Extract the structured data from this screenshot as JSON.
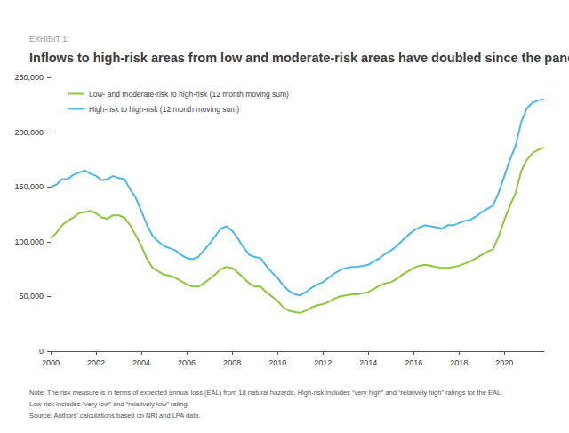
{
  "chart_data": {
    "type": "line",
    "subtitle": "EXHIBIT 1:",
    "title": "Inflows to high-risk areas from low and moderate-risk areas have doubled since the pandemic",
    "annotations": [
      "Note: The risk measure is in terms of expected annual loss (EAL) from 18 natural hazards. High-risk includes “very high” and “relatively high” ratings for the EAL.",
      "Low-risk includes “very low” and “relatively low” rating.",
      "Source: Authors’ calculations based on NRI and LPA data."
    ],
    "x": [
      2000.0,
      2000.25,
      2000.5,
      2000.75,
      2001.0,
      2001.25,
      2001.5,
      2001.75,
      2002.0,
      2002.25,
      2002.5,
      2002.75,
      2003.0,
      2003.25,
      2003.5,
      2003.75,
      2004.0,
      2004.25,
      2004.5,
      2004.75,
      2005.0,
      2005.25,
      2005.5,
      2005.75,
      2006.0,
      2006.25,
      2006.5,
      2006.75,
      2007.0,
      2007.25,
      2007.5,
      2007.75,
      2008.0,
      2008.25,
      2008.5,
      2008.75,
      2009.0,
      2009.25,
      2009.5,
      2009.75,
      2010.0,
      2010.25,
      2010.5,
      2010.75,
      2011.0,
      2011.25,
      2011.5,
      2011.75,
      2012.0,
      2012.25,
      2012.5,
      2012.75,
      2013.0,
      2013.25,
      2013.5,
      2013.75,
      2014.0,
      2014.25,
      2014.5,
      2014.75,
      2015.0,
      2015.25,
      2015.5,
      2015.75,
      2016.0,
      2016.25,
      2016.5,
      2016.75,
      2017.0,
      2017.25,
      2017.5,
      2017.75,
      2018.0,
      2018.25,
      2018.5,
      2018.75,
      2019.0,
      2019.25,
      2019.5,
      2019.75,
      2020.0,
      2020.25,
      2020.5,
      2020.75,
      2021.0,
      2021.25,
      2021.5,
      2021.75
    ],
    "series": [
      {
        "name": "Low- and moderate-risk to high-risk (12 month moving sum)",
        "color": "#8dc63f",
        "values": [
          103000,
          108000,
          115000,
          119000,
          122000,
          126000,
          127000,
          128000,
          126000,
          122000,
          121000,
          124000,
          124000,
          122000,
          115000,
          106000,
          96000,
          84000,
          76000,
          73000,
          70000,
          69000,
          67000,
          64000,
          61000,
          59000,
          59000,
          62000,
          66000,
          70000,
          75000,
          77000,
          76000,
          72000,
          67000,
          62000,
          59000,
          59000,
          54000,
          50000,
          46000,
          40000,
          37000,
          36000,
          35000,
          37000,
          40000,
          42000,
          43000,
          45000,
          48000,
          50000,
          51000,
          52000,
          52000,
          53000,
          54000,
          57000,
          60000,
          62000,
          63000,
          66000,
          70000,
          73000,
          76000,
          78000,
          79000,
          78000,
          77000,
          76000,
          76000,
          77000,
          78000,
          80000,
          82000,
          85000,
          88000,
          91000,
          93000,
          105000,
          120000,
          133000,
          145000,
          165000,
          175000,
          181000,
          184000,
          186000
        ]
      },
      {
        "name": "High-risk to high-risk (12 month moving sum)",
        "color": "#4cb8e6",
        "values": [
          150000,
          152000,
          157000,
          157000,
          161000,
          163000,
          165000,
          162000,
          160000,
          156000,
          157000,
          160000,
          158000,
          157000,
          148000,
          140000,
          128000,
          115000,
          105000,
          100000,
          96000,
          94000,
          92000,
          88000,
          85000,
          84000,
          86000,
          92000,
          98000,
          105000,
          112000,
          114000,
          110000,
          103000,
          95000,
          88000,
          86000,
          85000,
          78000,
          72000,
          67000,
          60000,
          55000,
          52000,
          51000,
          54000,
          58000,
          61000,
          63000,
          67000,
          71000,
          74000,
          76000,
          77000,
          77000,
          78000,
          79000,
          82000,
          85000,
          89000,
          92000,
          96000,
          101000,
          106000,
          110000,
          113000,
          115000,
          114000,
          113000,
          112000,
          115000,
          115000,
          117000,
          119000,
          120000,
          123000,
          127000,
          130000,
          133000,
          145000,
          160000,
          175000,
          188000,
          210000,
          222000,
          227000,
          229000,
          230000
        ]
      }
    ],
    "xlim": [
      2000,
      2021.75
    ],
    "xticks": [
      2000,
      2002,
      2004,
      2006,
      2008,
      2010,
      2012,
      2014,
      2016,
      2018,
      2020
    ],
    "ylim": [
      0,
      250000
    ],
    "yticks": [
      0,
      {
        "value": 50000,
        "label": "50,000"
      },
      {
        "value": 100000,
        "label": "100,000"
      },
      {
        "value": 150000,
        "label": "150,000"
      },
      {
        "value": 200000,
        "label": "200,000"
      },
      {
        "value": 250000,
        "label": "250,000"
      }
    ],
    "grid": false,
    "legend": "upper left"
  }
}
